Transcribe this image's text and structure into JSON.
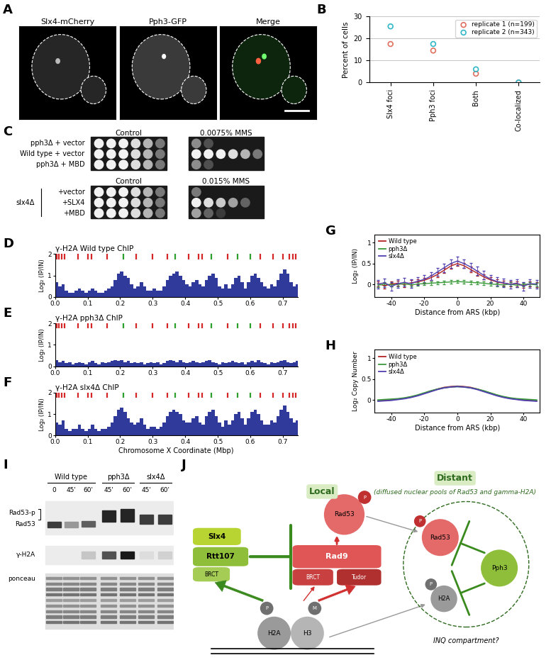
{
  "images": {
    "panel": "A",
    "channels": [
      "Slx4-mCherry",
      "Pph3-GFP",
      "Merge"
    ]
  },
  "chart_data": [
    {
      "panel": "B",
      "type": "scatter",
      "categories": [
        "Slx4 foci",
        "Pph3 foci",
        "Both",
        "Co-localized"
      ],
      "series": [
        {
          "name": "replicate 1 (n=199)",
          "color": "#e07060",
          "marker": "o",
          "values": [
            17.5,
            14.5,
            4,
            0
          ]
        },
        {
          "name": "replicate 2 (n=343)",
          "color": "#30b8c8",
          "marker": "o",
          "values": [
            25.5,
            17.5,
            6,
            0
          ]
        }
      ],
      "ylabel": "Percent of cells",
      "ylim": [
        0,
        30
      ],
      "yticks": [
        0,
        10,
        20,
        30
      ],
      "grid": true,
      "legend": "upper right"
    },
    {
      "panel": "D",
      "type": "bar",
      "title": "γ-H2A Wild type ChIP",
      "color": "#2f3a9a",
      "ylabel": "Log₂ (IP/IN)",
      "x": [
        0.0,
        0.01,
        0.02,
        0.03,
        0.04,
        0.05,
        0.06,
        0.07,
        0.08,
        0.09,
        0.1,
        0.11,
        0.12,
        0.13,
        0.14,
        0.15,
        0.16,
        0.17,
        0.18,
        0.19,
        0.2,
        0.21,
        0.22,
        0.23,
        0.24,
        0.25,
        0.26,
        0.27,
        0.28,
        0.29,
        0.3,
        0.31,
        0.32,
        0.33,
        0.34,
        0.35,
        0.36,
        0.37,
        0.38,
        0.39,
        0.4,
        0.41,
        0.42,
        0.43,
        0.44,
        0.45,
        0.46,
        0.47,
        0.48,
        0.49,
        0.5,
        0.51,
        0.52,
        0.53,
        0.54,
        0.55,
        0.56,
        0.57,
        0.58,
        0.59,
        0.6,
        0.61,
        0.62,
        0.63,
        0.64,
        0.65,
        0.66,
        0.67,
        0.68,
        0.69,
        0.7,
        0.71,
        0.72,
        0.73,
        0.74
      ],
      "values": [
        0.7,
        0.5,
        0.6,
        0.3,
        0.2,
        0.2,
        0.3,
        0.4,
        0.3,
        0.2,
        0.3,
        0.4,
        0.3,
        0.2,
        0.2,
        0.3,
        0.4,
        0.5,
        0.8,
        1.1,
        1.2,
        1.0,
        0.9,
        0.6,
        0.4,
        0.5,
        0.7,
        0.5,
        0.3,
        0.3,
        0.4,
        0.3,
        0.3,
        0.5,
        0.8,
        1.0,
        1.1,
        1.2,
        1.0,
        0.8,
        0.6,
        0.5,
        0.7,
        0.8,
        0.6,
        0.5,
        0.8,
        1.0,
        1.1,
        0.9,
        0.5,
        0.4,
        0.6,
        0.4,
        0.6,
        0.9,
        1.0,
        0.7,
        0.4,
        0.7,
        1.0,
        1.1,
        0.9,
        0.7,
        0.5,
        0.4,
        0.6,
        0.5,
        0.8,
        1.1,
        1.3,
        1.1,
        0.7,
        0.5,
        0.6
      ],
      "origins": [
        {
          "color": "#d62728",
          "x": [
            0.005,
            0.012,
            0.02,
            0.03,
            0.07,
            0.1,
            0.112,
            0.16,
            0.25,
            0.3,
            0.345,
            0.41,
            0.44,
            0.452,
            0.53,
            0.63,
            0.67,
            0.7,
            0.72,
            0.73,
            0.74
          ]
        },
        {
          "color": "#2ca02c",
          "x": [
            0.21,
            0.37,
            0.48,
            0.56,
            0.6
          ]
        }
      ],
      "xlim": [
        0,
        0.745
      ],
      "xticks": [
        0.0,
        0.1,
        0.2,
        0.3,
        0.4,
        0.5,
        0.6,
        0.7
      ],
      "ylim": [
        0,
        2
      ],
      "yticks": [
        0,
        1,
        2
      ]
    },
    {
      "panel": "E",
      "type": "bar",
      "title": "γ-H2A pph3Δ ChIP",
      "color": "#2f3a9a",
      "ylabel": "Log₂ (IP/IN)",
      "x": [
        0.0,
        0.01,
        0.02,
        0.03,
        0.04,
        0.05,
        0.06,
        0.07,
        0.08,
        0.09,
        0.1,
        0.11,
        0.12,
        0.13,
        0.14,
        0.15,
        0.16,
        0.17,
        0.18,
        0.19,
        0.2,
        0.21,
        0.22,
        0.23,
        0.24,
        0.25,
        0.26,
        0.27,
        0.28,
        0.29,
        0.3,
        0.31,
        0.32,
        0.33,
        0.34,
        0.35,
        0.36,
        0.37,
        0.38,
        0.39,
        0.4,
        0.41,
        0.42,
        0.43,
        0.44,
        0.45,
        0.46,
        0.47,
        0.48,
        0.49,
        0.5,
        0.51,
        0.52,
        0.53,
        0.54,
        0.55,
        0.56,
        0.57,
        0.58,
        0.59,
        0.6,
        0.61,
        0.62,
        0.63,
        0.64,
        0.65,
        0.66,
        0.67,
        0.68,
        0.69,
        0.7,
        0.71,
        0.72,
        0.73,
        0.74
      ],
      "values": [
        0.3,
        0.2,
        0.25,
        0.15,
        0.2,
        0.1,
        0.15,
        0.2,
        0.15,
        0.1,
        0.2,
        0.25,
        0.15,
        0.1,
        0.2,
        0.15,
        0.2,
        0.25,
        0.3,
        0.25,
        0.3,
        0.2,
        0.25,
        0.15,
        0.2,
        0.15,
        0.2,
        0.1,
        0.15,
        0.2,
        0.15,
        0.2,
        0.1,
        0.15,
        0.25,
        0.3,
        0.25,
        0.2,
        0.3,
        0.2,
        0.15,
        0.2,
        0.25,
        0.2,
        0.15,
        0.2,
        0.25,
        0.3,
        0.2,
        0.15,
        0.1,
        0.2,
        0.15,
        0.2,
        0.25,
        0.2,
        0.15,
        0.2,
        0.1,
        0.2,
        0.25,
        0.2,
        0.3,
        0.2,
        0.15,
        0.1,
        0.2,
        0.15,
        0.2,
        0.25,
        0.3,
        0.2,
        0.15,
        0.2,
        0.25
      ],
      "origins": [
        {
          "color": "#d62728",
          "x": [
            0.005,
            0.012,
            0.02,
            0.03,
            0.07,
            0.1,
            0.112,
            0.16,
            0.25,
            0.3,
            0.345,
            0.41,
            0.44,
            0.452,
            0.53,
            0.63,
            0.67,
            0.7,
            0.72,
            0.73,
            0.74
          ]
        },
        {
          "color": "#2ca02c",
          "x": [
            0.21,
            0.37,
            0.48,
            0.56,
            0.6
          ]
        }
      ],
      "xlim": [
        0,
        0.745
      ],
      "xticks": [
        0.0,
        0.1,
        0.2,
        0.3,
        0.4,
        0.5,
        0.6,
        0.7
      ],
      "ylim": [
        0,
        2
      ],
      "yticks": [
        0,
        1,
        2
      ]
    },
    {
      "panel": "F",
      "type": "bar",
      "title": "γ-H2A slx4Δ ChIP",
      "color": "#2f3a9a",
      "ylabel": "Log₂ (IP/IN)",
      "xlabel": "Chromosome X Coordinate (Mbp)",
      "x": [
        0.0,
        0.01,
        0.02,
        0.03,
        0.04,
        0.05,
        0.06,
        0.07,
        0.08,
        0.09,
        0.1,
        0.11,
        0.12,
        0.13,
        0.14,
        0.15,
        0.16,
        0.17,
        0.18,
        0.19,
        0.2,
        0.21,
        0.22,
        0.23,
        0.24,
        0.25,
        0.26,
        0.27,
        0.28,
        0.29,
        0.3,
        0.31,
        0.32,
        0.33,
        0.34,
        0.35,
        0.36,
        0.37,
        0.38,
        0.39,
        0.4,
        0.41,
        0.42,
        0.43,
        0.44,
        0.45,
        0.46,
        0.47,
        0.48,
        0.49,
        0.5,
        0.51,
        0.52,
        0.53,
        0.54,
        0.55,
        0.56,
        0.57,
        0.58,
        0.59,
        0.6,
        0.61,
        0.62,
        0.63,
        0.64,
        0.65,
        0.66,
        0.67,
        0.68,
        0.69,
        0.7,
        0.71,
        0.72,
        0.73,
        0.74
      ],
      "values": [
        0.6,
        0.5,
        0.7,
        0.3,
        0.2,
        0.3,
        0.3,
        0.5,
        0.3,
        0.2,
        0.3,
        0.5,
        0.3,
        0.2,
        0.3,
        0.3,
        0.4,
        0.6,
        0.9,
        1.2,
        1.3,
        1.1,
        0.8,
        0.6,
        0.5,
        0.6,
        0.8,
        0.5,
        0.3,
        0.4,
        0.4,
        0.3,
        0.4,
        0.6,
        0.9,
        1.1,
        1.2,
        1.1,
        1.0,
        0.7,
        0.6,
        0.6,
        0.8,
        0.9,
        0.6,
        0.5,
        0.9,
        1.1,
        1.2,
        0.9,
        0.6,
        0.4,
        0.7,
        0.5,
        0.7,
        1.0,
        1.1,
        0.8,
        0.5,
        0.8,
        1.1,
        1.2,
        1.0,
        0.7,
        0.5,
        0.5,
        0.7,
        0.6,
        0.9,
        1.2,
        1.4,
        1.1,
        0.8,
        0.6,
        0.7
      ],
      "origins": [
        {
          "color": "#d62728",
          "x": [
            0.005,
            0.012,
            0.02,
            0.03,
            0.07,
            0.1,
            0.112,
            0.16,
            0.25,
            0.3,
            0.345,
            0.41,
            0.44,
            0.452,
            0.53,
            0.63,
            0.67,
            0.7,
            0.72,
            0.73,
            0.74
          ]
        },
        {
          "color": "#2ca02c",
          "x": [
            0.21,
            0.37,
            0.48,
            0.56,
            0.6
          ]
        }
      ],
      "xlim": [
        0,
        0.745
      ],
      "xticks": [
        0.0,
        0.1,
        0.2,
        0.3,
        0.4,
        0.5,
        0.6,
        0.7
      ],
      "ylim": [
        0,
        2
      ],
      "yticks": [
        0,
        1,
        2
      ]
    },
    {
      "panel": "G",
      "type": "line",
      "xlabel": "Distance from ARS (kbp)",
      "ylabel": "Log₂ (IP/IN)",
      "x": [
        -48,
        -44,
        -40,
        -36,
        -32,
        -28,
        -24,
        -20,
        -16,
        -12,
        -8,
        -4,
        0,
        4,
        8,
        12,
        16,
        20,
        24,
        28,
        32,
        36,
        40,
        44,
        48
      ],
      "series": [
        {
          "name": "Wild type",
          "color": "#b22222",
          "values": [
            0.02,
            -0.03,
            0.01,
            0.03,
            0.0,
            0.04,
            0.06,
            0.1,
            0.16,
            0.24,
            0.34,
            0.44,
            0.5,
            0.45,
            0.36,
            0.27,
            0.18,
            0.11,
            0.06,
            0.03,
            0.01,
            0.02,
            -0.02,
            0.01,
            0.0
          ],
          "errors": [
            0.06,
            0.06,
            0.06,
            0.06,
            0.06,
            0.06,
            0.06,
            0.06,
            0.06,
            0.06,
            0.06,
            0.06,
            0.06,
            0.06,
            0.06,
            0.06,
            0.06,
            0.06,
            0.06,
            0.06,
            0.06,
            0.06,
            0.06,
            0.06,
            0.06
          ]
        },
        {
          "name": "pph3Δ",
          "color": "#3a9a3a",
          "values": [
            -0.02,
            0.01,
            -0.01,
            0.0,
            0.02,
            -0.01,
            0.01,
            0.02,
            0.03,
            0.04,
            0.05,
            0.06,
            0.07,
            0.06,
            0.05,
            0.04,
            0.03,
            0.01,
            0.0,
            -0.01,
            0.01,
            -0.02,
            0.0,
            0.01,
            -0.01
          ],
          "errors": [
            0.04,
            0.04,
            0.04,
            0.04,
            0.04,
            0.04,
            0.04,
            0.04,
            0.04,
            0.04,
            0.04,
            0.04,
            0.04,
            0.04,
            0.04,
            0.04,
            0.04,
            0.04,
            0.04,
            0.04,
            0.04,
            0.04,
            0.04,
            0.04,
            0.04
          ]
        },
        {
          "name": "slx4Δ",
          "color": "#5040b0",
          "values": [
            0.01,
            0.04,
            -0.05,
            0.02,
            0.05,
            0.02,
            0.08,
            0.12,
            0.2,
            0.3,
            0.4,
            0.5,
            0.56,
            0.5,
            0.42,
            0.32,
            0.22,
            0.13,
            0.07,
            0.04,
            0.0,
            0.03,
            -0.04,
            0.02,
            0.01
          ],
          "errors": [
            0.1,
            0.1,
            0.1,
            0.1,
            0.1,
            0.1,
            0.1,
            0.1,
            0.1,
            0.1,
            0.1,
            0.1,
            0.1,
            0.1,
            0.1,
            0.1,
            0.1,
            0.1,
            0.1,
            0.1,
            0.1,
            0.1,
            0.1,
            0.1,
            0.1
          ]
        }
      ],
      "xlim": [
        -50,
        50
      ],
      "xticks": [
        -40,
        -20,
        0,
        20,
        40
      ],
      "ylim": [
        -0.3,
        1.2
      ],
      "yticks": [
        0,
        0.5,
        1
      ],
      "legend": "upper left"
    },
    {
      "panel": "H",
      "type": "line",
      "xlabel": "Distance from ARS (kbp)",
      "ylabel": "Log₂ Copy Number",
      "x": [
        -48,
        -44,
        -40,
        -36,
        -32,
        -28,
        -24,
        -20,
        -16,
        -12,
        -8,
        -4,
        0,
        4,
        8,
        12,
        16,
        20,
        24,
        28,
        32,
        36,
        40,
        44,
        48
      ],
      "series": [
        {
          "name": "Wild type",
          "color": "#b22222",
          "values": [
            -0.02,
            -0.01,
            0.0,
            0.02,
            0.04,
            0.07,
            0.11,
            0.16,
            0.21,
            0.26,
            0.3,
            0.32,
            0.33,
            0.32,
            0.3,
            0.26,
            0.21,
            0.16,
            0.11,
            0.07,
            0.04,
            0.02,
            0.0,
            -0.01,
            -0.02
          ]
        },
        {
          "name": "pph3Δ",
          "color": "#3a9a3a",
          "values": [
            0.0,
            0.01,
            0.02,
            0.03,
            0.05,
            0.08,
            0.12,
            0.17,
            0.22,
            0.26,
            0.29,
            0.31,
            0.32,
            0.31,
            0.29,
            0.26,
            0.22,
            0.17,
            0.12,
            0.08,
            0.05,
            0.03,
            0.02,
            0.01,
            0.0
          ]
        },
        {
          "name": "slx4Δ",
          "color": "#5040b0",
          "values": [
            -0.03,
            -0.02,
            -0.01,
            0.01,
            0.03,
            0.06,
            0.1,
            0.15,
            0.2,
            0.25,
            0.29,
            0.31,
            0.32,
            0.31,
            0.29,
            0.25,
            0.2,
            0.15,
            0.1,
            0.06,
            0.03,
            0.01,
            -0.01,
            -0.02,
            -0.03
          ]
        }
      ],
      "xlim": [
        -50,
        50
      ],
      "xticks": [
        -40,
        -20,
        0,
        20,
        40
      ],
      "ylim": [
        -0.3,
        1.2
      ],
      "yticks": [
        0,
        0.5,
        1
      ],
      "legend": "upper left"
    }
  ],
  "spot_assay": {
    "panel": "C",
    "blocks": [
      {
        "conditions": [
          "Control",
          "0.0075% MMS"
        ],
        "strains": [
          "pph3Δ + vector",
          "Wild type + vector",
          "pph3Δ + MBD"
        ]
      },
      {
        "conditions": [
          "Control",
          "0.015% MMS"
        ],
        "group": "slx4Δ",
        "strains": [
          "+vector",
          "+SLX4",
          "+MBD"
        ]
      }
    ]
  },
  "western_blot": {
    "panel": "I",
    "groups": [
      {
        "name": "Wild type",
        "lanes": [
          "0",
          "45'",
          "60'"
        ]
      },
      {
        "name": "pph3Δ",
        "lanes": [
          "45'",
          "60'"
        ]
      },
      {
        "name": "slx4Δ",
        "lanes": [
          "45'",
          "60'"
        ]
      }
    ],
    "rows": [
      "Rad53-p",
      "Rad53",
      "γ-H2A",
      "ponceau"
    ]
  },
  "diagram": {
    "panel": "J",
    "local": "Local",
    "distant": "Distant",
    "distant_note": "(diffused nuclear pools of Rad53 and gamma-H2A)",
    "slx4": "Slx4",
    "rtt107": "Rtt107",
    "brct": "BRCT",
    "rad9": "Rad9",
    "tudor": "Tudor",
    "rad53": "Rad53",
    "phospho": "P",
    "methyl": "M",
    "pph3": "Pph3",
    "h2a": "H2A",
    "h3": "H3",
    "inq": "INQ compartment?"
  }
}
